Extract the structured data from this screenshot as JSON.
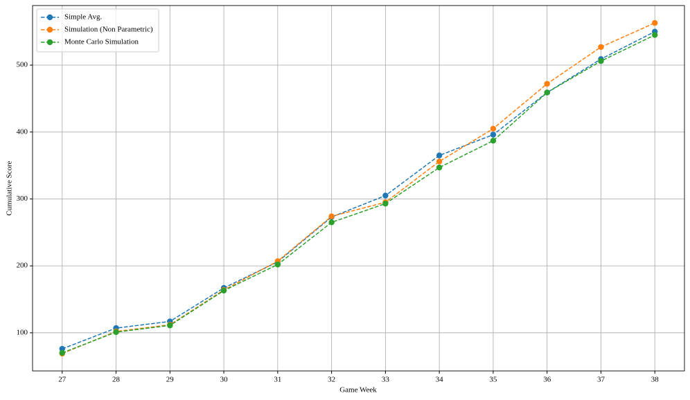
{
  "chart_data": {
    "type": "line",
    "x_label": "Game Week",
    "y_label": "Cumulative Score",
    "x": [
      27,
      28,
      29,
      30,
      31,
      32,
      33,
      34,
      35,
      36,
      37,
      38
    ],
    "series": [
      {
        "name": "Simple Avg.",
        "color": "#1f77b4",
        "values": [
          76,
          107,
          117,
          167,
          206,
          273,
          305,
          365,
          396,
          459,
          509,
          550
        ]
      },
      {
        "name": "Simulation (Non Parametric)",
        "color": "#ff7f0e",
        "values": [
          69,
          102,
          112,
          164,
          207,
          274,
          295,
          356,
          405,
          472,
          527,
          563
        ]
      },
      {
        "name": "Monte Carlo Simulation",
        "color": "#2ca02c",
        "values": [
          70,
          101,
          111,
          163,
          202,
          265,
          293,
          347,
          387,
          459,
          506,
          545
        ]
      }
    ],
    "xlim": [
      26.45,
      38.55
    ],
    "ylim": [
      43,
      589
    ],
    "xticks": [
      27,
      28,
      29,
      30,
      31,
      32,
      33,
      34,
      35,
      36,
      37,
      38
    ],
    "yticks": [
      100,
      200,
      300,
      400,
      500
    ],
    "grid": true,
    "legend": "upper-left"
  }
}
